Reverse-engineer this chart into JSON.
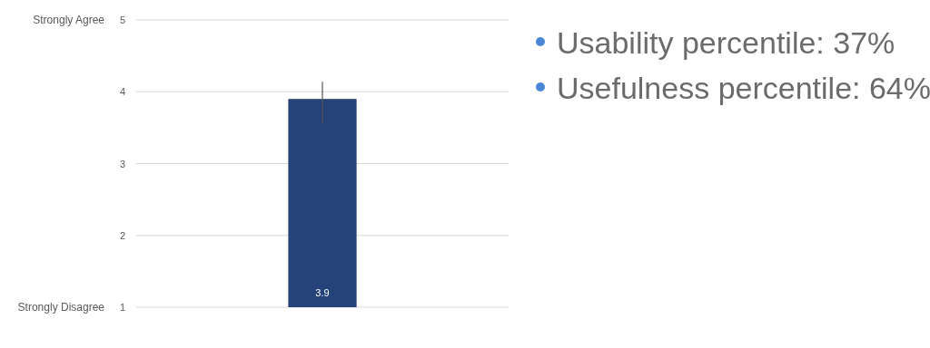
{
  "chart_data": {
    "type": "bar",
    "categories": [
      null
    ],
    "values": [
      2.9
    ],
    "base": [
      1
    ],
    "value_labels": [
      "3.9"
    ],
    "errors": [
      [
        3.56,
        4.14
      ]
    ],
    "color": "#254378",
    "ylim": [
      1,
      5
    ],
    "yticks": [
      1,
      2,
      3,
      4,
      5
    ],
    "grid": "y",
    "annotations": [
      "Strongly Agree",
      "Strongly Disagree",
      "Usability percentile: 37%",
      "Usefulness percentile: 64%"
    ]
  }
}
